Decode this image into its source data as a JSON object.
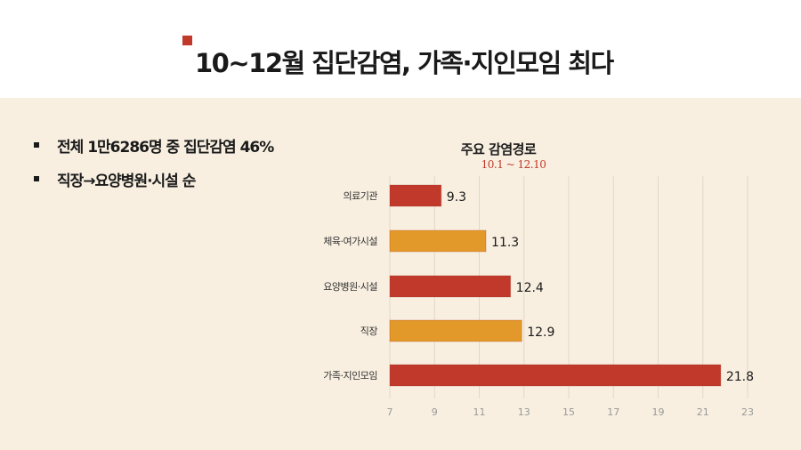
{
  "page": {
    "title": "10~12월 집단감염, 가족·지인모임 최다",
    "bullets": [
      "전체 1만6286명 중 집단감염 46%",
      "직장→요양병원·시설 순"
    ]
  },
  "colors": {
    "red": "#c0392b",
    "orange": "#e3992a",
    "background": "#f8efe0"
  },
  "chart_data": {
    "type": "bar",
    "orientation": "horizontal",
    "title": "주요 감염경로",
    "subtitle": "10.1 ~ 12.10",
    "categories": [
      "의료기관",
      "체육·여가시설",
      "요양병원·시설",
      "직장",
      "가족·지인모임"
    ],
    "values": [
      9.3,
      11.3,
      12.4,
      12.9,
      21.8
    ],
    "bar_colors": [
      "#c0392b",
      "#e3992a",
      "#c0392b",
      "#e3992a",
      "#c0392b"
    ],
    "xlim": [
      7,
      23
    ],
    "xticks": [
      7,
      9,
      11,
      13,
      15,
      17,
      19,
      21,
      23
    ],
    "grid": true
  }
}
